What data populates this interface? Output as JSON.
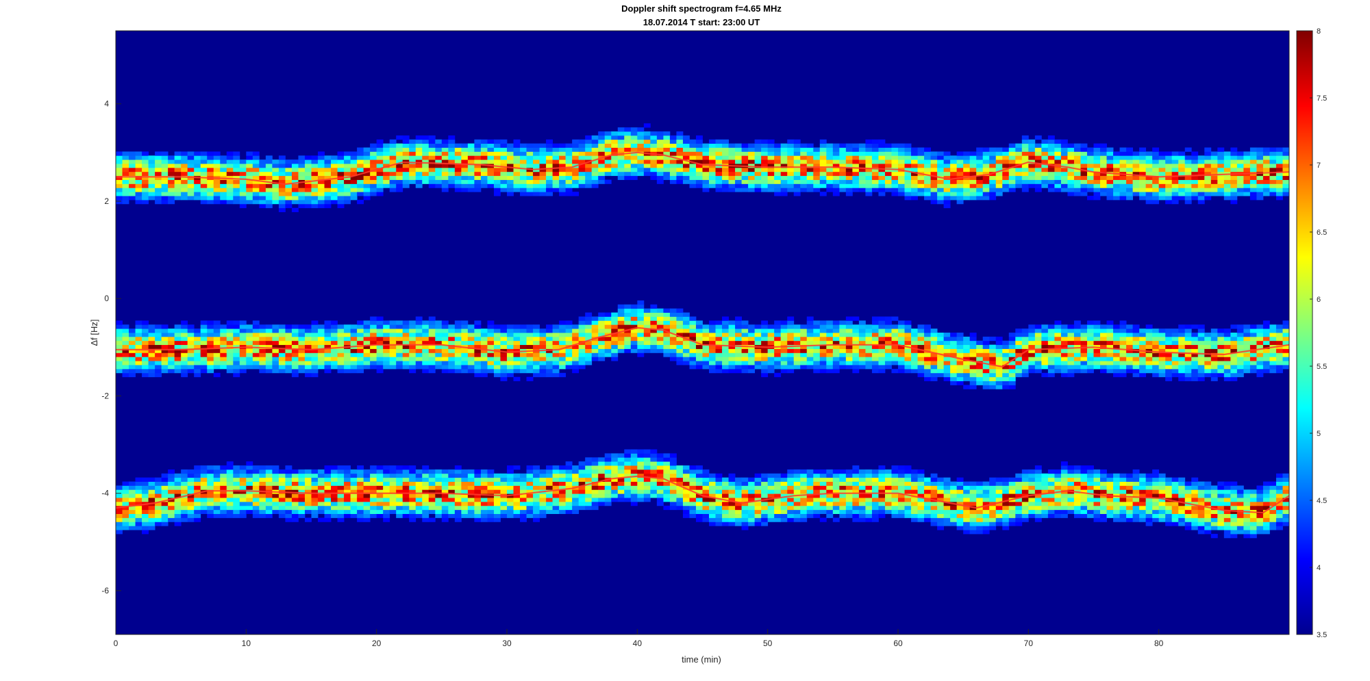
{
  "chart_data": {
    "type": "heatmap",
    "title": "Doppler shift spectrogram f=4.65 MHz",
    "subtitle": "18.07.2014   T start: 23:00 UT",
    "xlabel": "time (min)",
    "ylabel": "Δf [Hz]",
    "xlim": [
      0,
      90
    ],
    "ylim": [
      -6.9,
      5.5
    ],
    "x_ticks": [
      "0",
      "10",
      "20",
      "30",
      "40",
      "50",
      "60",
      "70",
      "80"
    ],
    "y_ticks": [
      "-6",
      "-4",
      "-2",
      "0",
      "2",
      "4"
    ],
    "colorbar": {
      "colormap": "jet",
      "range": [
        3.5,
        8
      ],
      "ticks": [
        "3.5",
        "4",
        "4.5",
        "5",
        "5.5",
        "6",
        "6.5",
        "7",
        "7.5",
        "8"
      ]
    },
    "series": [
      {
        "x": [
          0,
          5,
          10,
          13,
          18,
          22,
          28,
          32,
          35,
          38,
          40,
          42,
          45,
          50,
          55,
          60,
          64,
          67,
          70,
          73,
          75,
          80,
          85,
          90
        ],
        "y": [
          2.5,
          2.5,
          2.45,
          2.35,
          2.5,
          2.8,
          2.75,
          2.65,
          2.7,
          2.95,
          3.0,
          2.95,
          2.75,
          2.7,
          2.7,
          2.65,
          2.45,
          2.55,
          2.8,
          2.7,
          2.6,
          2.5,
          2.55,
          2.6
        ]
      },
      {
        "x": [
          0,
          5,
          10,
          15,
          20,
          25,
          30,
          34,
          37,
          40,
          42,
          45,
          50,
          55,
          60,
          65,
          68,
          70,
          75,
          80,
          85,
          90
        ],
        "y": [
          -1.05,
          -1.05,
          -1.0,
          -1.05,
          -0.95,
          -0.95,
          -1.1,
          -1.05,
          -0.8,
          -0.6,
          -0.65,
          -0.95,
          -1.0,
          -0.95,
          -0.95,
          -1.25,
          -1.4,
          -1.05,
          -1.0,
          -1.1,
          -1.15,
          -0.95
        ]
      },
      {
        "x": [
          0,
          3,
          7,
          10,
          15,
          20,
          25,
          30,
          35,
          38,
          40,
          42,
          45,
          48,
          52,
          55,
          60,
          64,
          66,
          70,
          73,
          76,
          80,
          85,
          88,
          90
        ],
        "y": [
          -4.3,
          -4.2,
          -3.95,
          -3.95,
          -4.0,
          -4.0,
          -4.0,
          -4.05,
          -3.9,
          -3.7,
          -3.65,
          -3.7,
          -4.05,
          -4.2,
          -4.05,
          -4.0,
          -4.0,
          -4.2,
          -4.3,
          -4.05,
          -3.95,
          -4.05,
          -4.1,
          -4.35,
          -4.4,
          -4.05
        ]
      }
    ],
    "noise_floor": 3.5,
    "peak_level": 7.6
  }
}
